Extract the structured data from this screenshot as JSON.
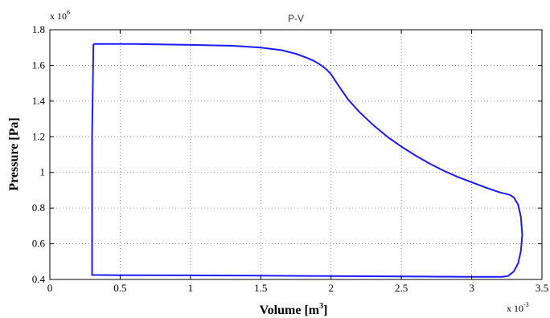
{
  "chart_data": {
    "type": "line",
    "title": "P-V",
    "xlabel": "Volume [m",
    "xlabel_sup": "3",
    "xlabel_end": "]",
    "ylabel": "Pressure [Pa]",
    "x_exponent_base": "x 10",
    "x_exponent_power": "-3",
    "y_exponent_base": "x 10",
    "y_exponent_power": "6",
    "xlim": [
      0,
      3.5
    ],
    "ylim": [
      0.4,
      1.8
    ],
    "x_ticks": [
      0,
      0.5,
      1,
      1.5,
      2,
      2.5,
      3,
      3.5
    ],
    "y_ticks": [
      0.4,
      0.6,
      0.8,
      1,
      1.2,
      1.4,
      1.6,
      1.8
    ],
    "grid": true,
    "line_color": "#1a1aff",
    "series": [
      {
        "x": [
          0.31,
          0.6,
          1.0,
          1.3,
          1.5,
          1.65,
          1.75,
          1.82,
          1.88,
          1.93,
          1.97,
          2.0,
          2.05,
          2.12,
          2.2,
          2.3,
          2.4,
          2.5,
          2.6,
          2.7,
          2.8,
          2.9,
          3.0,
          3.1,
          3.2,
          3.27,
          3.3,
          3.33,
          3.35,
          3.36,
          3.35,
          3.33,
          3.3,
          3.26,
          3.22,
          3.0,
          2.5,
          2.0,
          1.5,
          1.0,
          0.5,
          0.3,
          0.3,
          0.31
        ],
        "y": [
          1.72,
          1.72,
          1.715,
          1.71,
          1.7,
          1.685,
          1.665,
          1.645,
          1.625,
          1.6,
          1.575,
          1.55,
          1.49,
          1.41,
          1.34,
          1.265,
          1.2,
          1.145,
          1.095,
          1.05,
          1.01,
          0.975,
          0.945,
          0.915,
          0.888,
          0.875,
          0.86,
          0.82,
          0.75,
          0.65,
          0.56,
          0.49,
          0.445,
          0.42,
          0.415,
          0.415,
          0.417,
          0.419,
          0.421,
          0.423,
          0.424,
          0.425,
          1.2,
          1.72
        ]
      }
    ]
  }
}
